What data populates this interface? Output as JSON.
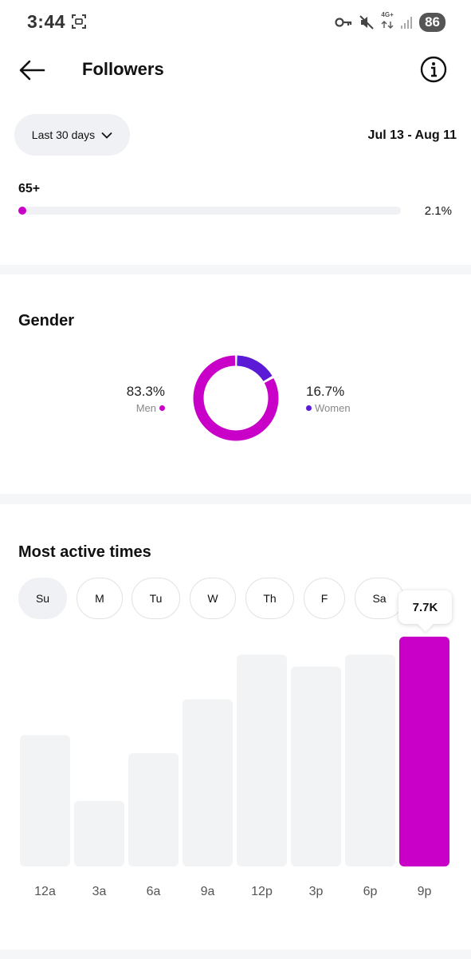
{
  "status_bar": {
    "time": "3:44",
    "network": "4G+",
    "battery": "86"
  },
  "header": {
    "title": "Followers"
  },
  "filters": {
    "range_label": "Last 30 days",
    "date_range": "Jul 13 - Aug 11"
  },
  "age": {
    "label": "65+",
    "value": "2.1%",
    "fraction": 0.021
  },
  "gender": {
    "title": "Gender",
    "men": {
      "pct": "83.3%",
      "label": "Men",
      "fraction": 0.833,
      "color": "#c800c8"
    },
    "women": {
      "pct": "16.7%",
      "label": "Women",
      "fraction": 0.167,
      "color": "#5b1ad6"
    }
  },
  "active": {
    "title": "Most active times",
    "days": [
      "Su",
      "M",
      "Tu",
      "W",
      "Th",
      "F",
      "Sa"
    ],
    "selected_day": "Su",
    "tooltip": "7.7K"
  },
  "chart_data": {
    "type": "bar",
    "categories": [
      "12a",
      "3a",
      "6a",
      "9a",
      "12p",
      "3p",
      "6p",
      "9p"
    ],
    "values": [
      4.4,
      2.2,
      3.8,
      5.6,
      7.1,
      6.7,
      7.1,
      7.7
    ],
    "highlighted": "9p",
    "highlight_color": "#c800c8",
    "bar_color": "#f2f3f5",
    "ylim": [
      0,
      7.7
    ]
  }
}
